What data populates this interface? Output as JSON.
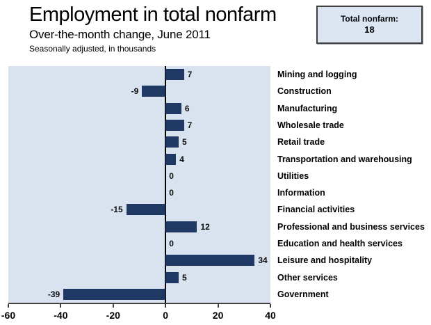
{
  "header": {
    "title": "Employment in total nonfarm",
    "subtitle": "Over-the-month change, June 2011",
    "note": "Seasonally adjusted, in thousands",
    "total_box": {
      "label": "Total nonfarm:",
      "value": "18"
    }
  },
  "chart_data": {
    "type": "bar",
    "orientation": "horizontal",
    "title": "Employment in total nonfarm",
    "subtitle": "Over-the-month change, June 2011",
    "units": "Seasonally adjusted, in thousands",
    "categories": [
      "Mining and logging",
      "Construction",
      "Manufacturing",
      "Wholesale trade",
      "Retail trade",
      "Transportation and warehousing",
      "Utilities",
      "Information",
      "Financial activities",
      "Professional and business services",
      "Education and health services",
      "Leisure and hospitality",
      "Other services",
      "Government"
    ],
    "values": [
      7,
      -9,
      6,
      7,
      5,
      4,
      0,
      0,
      -15,
      12,
      0,
      34,
      5,
      -39
    ],
    "total_nonfarm": 18,
    "xlim": [
      -60,
      40
    ],
    "x_ticks": [
      -60,
      -40,
      -20,
      0,
      20,
      40
    ],
    "grid": false,
    "value_labels": true,
    "colors": {
      "bar": "#1f3864",
      "plot_background": "#d9e3ef",
      "callout_background": "#dce6f2",
      "axis": "#404040"
    }
  }
}
